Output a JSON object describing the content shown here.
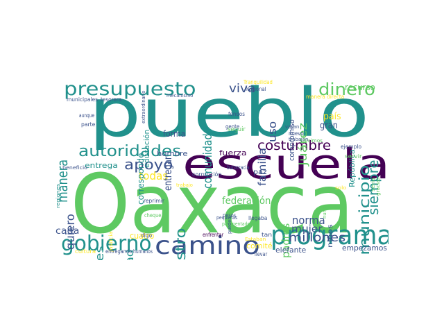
{
  "palette": {
    "dark_purple": "#440154",
    "indigo": "#3b528b",
    "teal": "#21918c",
    "green": "#5ec962",
    "yellow": "#fde725"
  },
  "words": [
    {
      "text": "Oaxaca",
      "color": "#5ec962"
    },
    {
      "text": "pueblo",
      "color": "#21918c"
    },
    {
      "text": "escuela",
      "color": "#440154"
    },
    {
      "text": "programa",
      "color": "#21918c"
    },
    {
      "text": "camino",
      "color": "#3b528b"
    },
    {
      "text": "gobierno",
      "color": "#21918c"
    },
    {
      "text": "presupuesto",
      "color": "#21918c"
    },
    {
      "text": "autoridades",
      "color": "#21918c"
    },
    {
      "text": "dinero",
      "color": "#5ec962"
    },
    {
      "text": "apoyo",
      "color": "#3b528b"
    },
    {
      "text": "municipio",
      "color": "#21918c"
    },
    {
      "text": "maestro",
      "color": "#21918c"
    },
    {
      "text": "manera",
      "color": "#21918c"
    },
    {
      "text": "costumbre",
      "color": "#440154"
    },
    {
      "text": "comunidad",
      "color": "#21918c"
    },
    {
      "text": "democracia",
      "color": "#3b528b"
    },
    {
      "text": "siempre",
      "color": "#21918c"
    },
    {
      "text": "millones",
      "color": "#3b528b"
    },
    {
      "text": "mujeres",
      "color": "#21918c"
    },
    {
      "text": "viva",
      "color": "#3b528b"
    },
    {
      "text": "uso",
      "color": "#3b528b"
    },
    {
      "text": "familia",
      "color": "#3b528b"
    },
    {
      "text": "Juárez",
      "color": "#5ec962"
    },
    {
      "text": "autoridad",
      "color": "#21918c"
    },
    {
      "text": "quiero",
      "color": "#3b528b"
    },
    {
      "text": "mujer",
      "color": "#3b528b"
    },
    {
      "text": "norma",
      "color": "#3b528b"
    },
    {
      "text": "padres",
      "color": "#5ec962"
    },
    {
      "text": "federación",
      "color": "#5ec962"
    },
    {
      "text": "todas",
      "color": "#fde725"
    },
    {
      "text": "entregar",
      "color": "#3b528b"
    },
    {
      "text": "forma",
      "color": "#3b528b"
    },
    {
      "text": "cada",
      "color": "#3b528b"
    },
    {
      "text": "gran",
      "color": "#3b528b"
    },
    {
      "text": "país",
      "color": "#fde725"
    },
    {
      "text": "recurso",
      "color": "#5ec962"
    },
    {
      "text": "compromiso",
      "color": "#3b528b"
    },
    {
      "text": "República",
      "color": "#21918c"
    },
    {
      "text": "violencia",
      "color": "#3b528b"
    },
    {
      "text": "educación",
      "color": "#21918c"
    },
    {
      "text": "corresponde",
      "color": "#21918c"
    },
    {
      "text": "hombre",
      "color": "#3b528b"
    },
    {
      "text": "fuerza",
      "color": "#440154"
    },
    {
      "text": "entrega",
      "color": "#21918c"
    },
    {
      "text": "paz",
      "color": "#3b528b"
    },
    {
      "text": "empezamos",
      "color": "#3b528b"
    },
    {
      "text": "comité",
      "color": "#fde725"
    },
    {
      "text": "elefante",
      "color": "#3b528b"
    },
    {
      "text": "cuatro",
      "color": "#fde725"
    },
    {
      "text": "niños",
      "color": "#3b528b"
    },
    {
      "text": "seguir",
      "color": "#5ec962"
    },
    {
      "text": "fondos",
      "color": "#3b528b"
    },
    {
      "text": "gente",
      "color": "#3b528b"
    },
    {
      "text": "ejemplo",
      "color": "#3b528b"
    },
    {
      "text": "servir",
      "color": "#5ec962"
    },
    {
      "text": "cheque",
      "color": "#5ec962"
    },
    {
      "text": "reprimir",
      "color": "#3b528b"
    },
    {
      "text": "digo",
      "color": "#3b528b"
    },
    {
      "text": "enfrentar",
      "color": "#440154"
    },
    {
      "text": "llevar",
      "color": "#3b528b"
    },
    {
      "text": "llegaba",
      "color": "#3b528b"
    },
    {
      "text": "corrupción",
      "color": "#3b528b"
    },
    {
      "text": "burocracia",
      "color": "#3b528b"
    },
    {
      "text": "Nacional",
      "color": "#3b528b"
    },
    {
      "text": "Tranquilidad",
      "color": "#fde725"
    },
    {
      "text": "municipales",
      "color": "#3b528b"
    },
    {
      "text": "tesorera",
      "color": "#3b528b"
    },
    {
      "text": "aunque",
      "color": "#3b528b"
    },
    {
      "text": "parte",
      "color": "#3b528b"
    },
    {
      "text": "extraordinario",
      "color": "#3b528b"
    },
    {
      "text": "mecanismo",
      "color": "#3b528b"
    },
    {
      "text": "beneficio",
      "color": "#3b528b"
    },
    {
      "text": "regiones",
      "color": "#21918c"
    },
    {
      "text": "justicia",
      "color": "#fde725"
    },
    {
      "text": "cultura",
      "color": "#fde725"
    },
    {
      "text": "entregando",
      "color": "#3b528b"
    },
    {
      "text": "humanos",
      "color": "#3b528b"
    },
    {
      "text": "pequeñas",
      "color": "#3b528b"
    },
    {
      "text": "pavimentado",
      "color": "#5ec962"
    },
    {
      "text": "pesos",
      "color": "#3b528b"
    },
    {
      "text": "pueden",
      "color": "#3b528b"
    },
    {
      "text": "Estaban",
      "color": "#fde725"
    },
    {
      "text": "tan",
      "color": "#3b528b"
    },
    {
      "text": "nuevo",
      "color": "#3b528b"
    },
    {
      "text": "trabajan",
      "color": "#3b528b"
    },
    {
      "text": "hicimos",
      "color": "#5ec962"
    },
    {
      "text": "manera directa",
      "color": "#fde725"
    },
    {
      "text": "trabajo",
      "color": "#fde725"
    },
    {
      "text": "solo",
      "color": "#fde725"
    },
    {
      "text": "nunca",
      "color": "#5ec962"
    },
    {
      "text": "cual",
      "color": "#5ec962"
    },
    {
      "text": "vayan",
      "color": "#3b528b"
    },
    {
      "text": "sería",
      "color": "#5ec962"
    },
    {
      "text": "gracias",
      "color": "#5ec962"
    }
  ]
}
